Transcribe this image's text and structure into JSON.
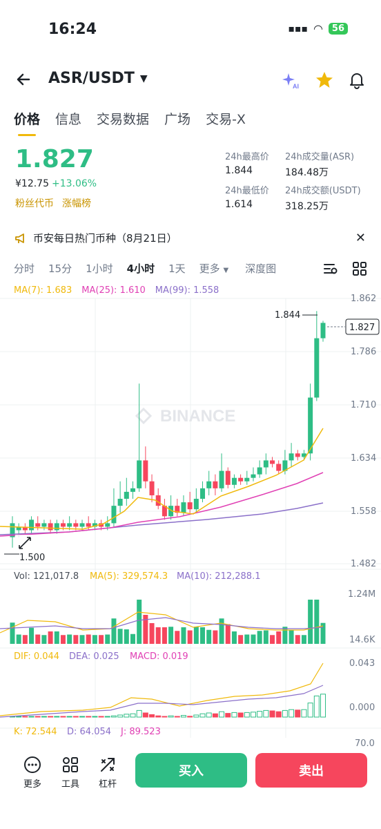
{
  "status": {
    "time": "16:24",
    "battery": "56"
  },
  "header": {
    "pair": "ASR/USDT"
  },
  "tabs": [
    "价格",
    "信息",
    "交易数据",
    "广场",
    "交易-X"
  ],
  "price": {
    "last": "1.827",
    "cny": "¥12.75",
    "change": "+13.06%",
    "tag1": "粉丝代币",
    "tag2": "涨幅榜"
  },
  "stats": {
    "high_label": "24h最高价",
    "high": "1.844",
    "vol_label": "24h成交量(ASR)",
    "vol": "184.48万",
    "low_label": "24h最低价",
    "low": "1.614",
    "amt_label": "24h成交额(USDT)",
    "amt": "318.25万"
  },
  "banner": {
    "text": "币安每日热门币种（8月21日）"
  },
  "intervals": [
    "分时",
    "15分",
    "1小时",
    "4小时",
    "1天",
    "更多",
    "深度图"
  ],
  "ma": {
    "ma7": "MA(7): 1.683",
    "ma25": "MA(25): 1.610",
    "ma99": "MA(99): 1.558"
  },
  "colors": {
    "up": "#2ebd85",
    "down": "#f6465d",
    "ma7": "#f0b90b",
    "ma25": "#e040b4",
    "ma99": "#8a6fc9"
  },
  "price_axis": [
    "1.862",
    "1.786",
    "1.710",
    "1.634",
    "1.558",
    "1.482"
  ],
  "price_markers": {
    "high": "1.844",
    "current": "1.827",
    "low": "1.500"
  },
  "watermark": "BINANCE",
  "volume": {
    "vol": "Vol: 121,017.8",
    "ma5": "MA(5): 329,574.3",
    "ma10": "MA(10): 212,288.1",
    "axis_top": "1.24M",
    "axis_bottom": "14.6K"
  },
  "macd": {
    "dif": "DIF: 0.044",
    "dea": "DEA: 0.025",
    "macd": "MACD: 0.019",
    "axis_top": "0.043",
    "axis_bottom": "0.000"
  },
  "kdj": {
    "k": "K: 72.544",
    "d": "D: 64.054",
    "j": "J: 89.523",
    "axis": "70.0"
  },
  "bottom": {
    "more": "更多",
    "tools": "工具",
    "leverage": "杠杆",
    "buy": "买入",
    "sell": "卖出"
  },
  "chart_data": {
    "type": "candlestick",
    "ylim": [
      1.482,
      1.862
    ],
    "candles": [
      [
        1.52,
        1.54,
        1.505,
        1.55
      ],
      [
        1.53,
        1.535,
        1.52,
        1.54
      ],
      [
        1.535,
        1.53,
        1.525,
        1.54
      ],
      [
        1.53,
        1.545,
        1.525,
        1.55
      ],
      [
        1.54,
        1.535,
        1.53,
        1.55
      ],
      [
        1.535,
        1.54,
        1.53,
        1.545
      ],
      [
        1.54,
        1.53,
        1.525,
        1.545
      ],
      [
        1.53,
        1.54,
        1.525,
        1.545
      ],
      [
        1.54,
        1.535,
        1.53,
        1.545
      ],
      [
        1.535,
        1.54,
        1.53,
        1.55
      ],
      [
        1.54,
        1.535,
        1.53,
        1.545
      ],
      [
        1.535,
        1.54,
        1.53,
        1.545
      ],
      [
        1.54,
        1.535,
        1.53,
        1.55
      ],
      [
        1.535,
        1.54,
        1.53,
        1.545
      ],
      [
        1.54,
        1.535,
        1.53,
        1.545
      ],
      [
        1.535,
        1.54,
        1.53,
        1.55
      ],
      [
        1.54,
        1.565,
        1.535,
        1.59
      ],
      [
        1.565,
        1.575,
        1.555,
        1.6
      ],
      [
        1.575,
        1.585,
        1.565,
        1.605
      ],
      [
        1.585,
        1.59,
        1.575,
        1.6
      ],
      [
        1.59,
        1.63,
        1.585,
        1.74
      ],
      [
        1.63,
        1.6,
        1.59,
        1.65
      ],
      [
        1.6,
        1.58,
        1.57,
        1.61
      ],
      [
        1.58,
        1.565,
        1.56,
        1.59
      ],
      [
        1.565,
        1.55,
        1.545,
        1.575
      ],
      [
        1.55,
        1.565,
        1.545,
        1.58
      ],
      [
        1.565,
        1.555,
        1.55,
        1.575
      ],
      [
        1.555,
        1.57,
        1.55,
        1.58
      ],
      [
        1.57,
        1.56,
        1.555,
        1.585
      ],
      [
        1.56,
        1.575,
        1.555,
        1.59
      ],
      [
        1.575,
        1.59,
        1.57,
        1.6
      ],
      [
        1.59,
        1.6,
        1.58,
        1.615
      ],
      [
        1.6,
        1.59,
        1.58,
        1.61
      ],
      [
        1.59,
        1.615,
        1.585,
        1.64
      ],
      [
        1.615,
        1.595,
        1.59,
        1.62
      ],
      [
        1.595,
        1.605,
        1.59,
        1.61
      ],
      [
        1.605,
        1.6,
        1.595,
        1.61
      ],
      [
        1.6,
        1.605,
        1.595,
        1.615
      ],
      [
        1.605,
        1.61,
        1.6,
        1.62
      ],
      [
        1.61,
        1.62,
        1.605,
        1.63
      ],
      [
        1.62,
        1.63,
        1.61,
        1.64
      ],
      [
        1.63,
        1.625,
        1.62,
        1.635
      ],
      [
        1.625,
        1.615,
        1.61,
        1.63
      ],
      [
        1.615,
        1.63,
        1.61,
        1.645
      ],
      [
        1.63,
        1.64,
        1.62,
        1.655
      ],
      [
        1.64,
        1.635,
        1.63,
        1.645
      ],
      [
        1.635,
        1.64,
        1.63,
        1.645
      ],
      [
        1.64,
        1.72,
        1.63,
        1.74
      ],
      [
        1.72,
        1.805,
        1.715,
        1.844
      ],
      [
        1.805,
        1.827,
        1.8,
        1.83
      ]
    ]
  }
}
